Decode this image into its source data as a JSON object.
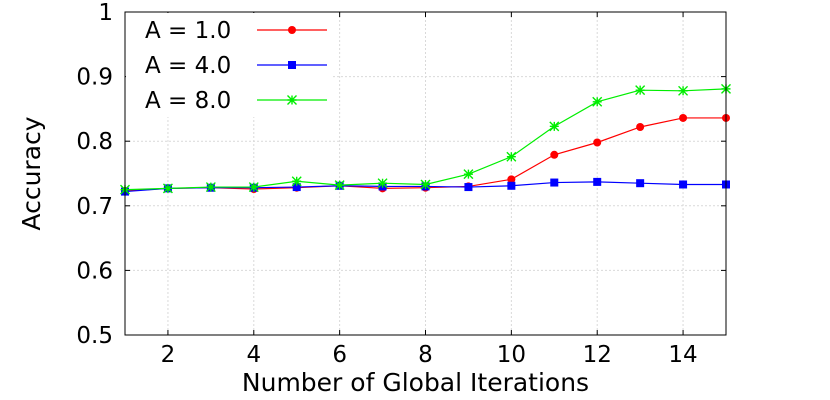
{
  "chart_data": {
    "type": "line",
    "title": "",
    "xlabel": "Number of Global Iterations",
    "ylabel": "Accuracy",
    "xlim": [
      1,
      15
    ],
    "ylim": [
      0.5,
      1.0
    ],
    "xticks": [
      2,
      4,
      6,
      8,
      10,
      12,
      14
    ],
    "yticks": [
      0.5,
      0.6,
      0.7,
      0.8,
      0.9,
      1.0
    ],
    "ytick_labels": [
      "0.5",
      "0.6",
      "0.7",
      "0.8",
      "0.9",
      "1"
    ],
    "grid": true,
    "legend_position": "top-left",
    "x": [
      1,
      2,
      3,
      4,
      5,
      6,
      7,
      8,
      9,
      10,
      11,
      12,
      13,
      14,
      15
    ],
    "series": [
      {
        "name": "A = 1.0",
        "color": "#ff0000",
        "marker": "circle",
        "values": [
          0.723,
          0.727,
          0.728,
          0.726,
          0.728,
          0.731,
          0.727,
          0.728,
          0.73,
          0.741,
          0.779,
          0.798,
          0.822,
          0.836,
          0.836
        ]
      },
      {
        "name": "A = 4.0",
        "color": "#0000ff",
        "marker": "square",
        "values": [
          0.722,
          0.727,
          0.728,
          0.728,
          0.729,
          0.731,
          0.73,
          0.73,
          0.729,
          0.731,
          0.736,
          0.737,
          0.735,
          0.733,
          0.733
        ]
      },
      {
        "name": "A = 8.0",
        "color": "#00ee00",
        "marker": "star",
        "values": [
          0.725,
          0.727,
          0.729,
          0.729,
          0.738,
          0.732,
          0.735,
          0.733,
          0.749,
          0.776,
          0.823,
          0.861,
          0.879,
          0.878,
          0.881
        ]
      }
    ]
  }
}
